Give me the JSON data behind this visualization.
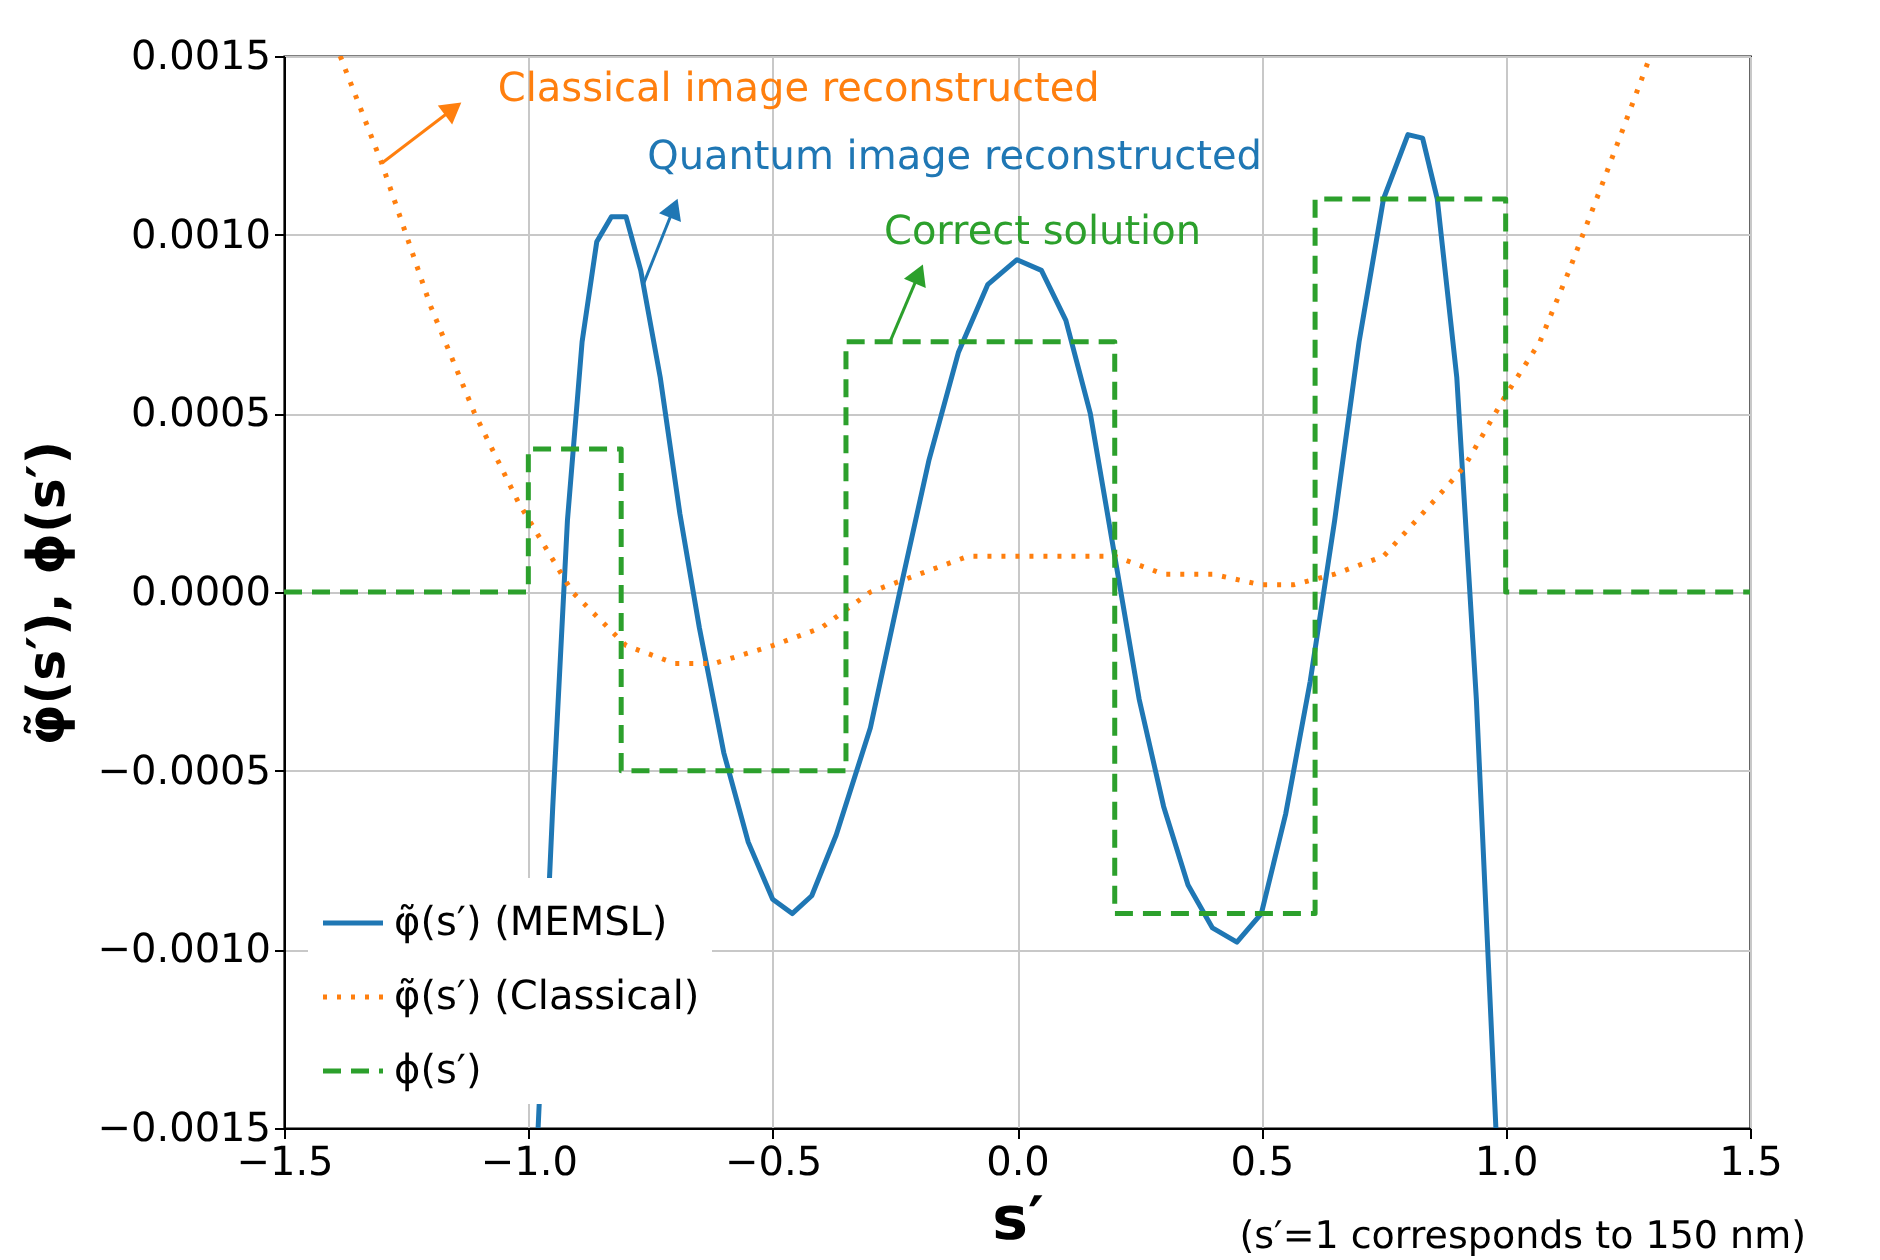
{
  "chart_data": {
    "type": "line",
    "xlabel": "s′",
    "ylabel": "φ̃(s′), ϕ(s′)",
    "xlim": [
      -1.5,
      1.5
    ],
    "ylim": [
      -0.0015,
      0.0015
    ],
    "xticks": [
      {
        "value": -1.5,
        "label": "−1.5"
      },
      {
        "value": -1.0,
        "label": "−1.0"
      },
      {
        "value": -0.5,
        "label": "−0.5"
      },
      {
        "value": 0.0,
        "label": "0.0"
      },
      {
        "value": 0.5,
        "label": "0.5"
      },
      {
        "value": 1.0,
        "label": "1.0"
      },
      {
        "value": 1.5,
        "label": "1.5"
      }
    ],
    "yticks": [
      {
        "value": -0.0015,
        "label": "−0.0015"
      },
      {
        "value": -0.001,
        "label": "−0.0010"
      },
      {
        "value": -0.0005,
        "label": "−0.0005"
      },
      {
        "value": 0,
        "label": "0.0000"
      },
      {
        "value": 0.0005,
        "label": "0.0005"
      },
      {
        "value": 0.001,
        "label": "0.0010"
      },
      {
        "value": 0.0015,
        "label": "0.0015"
      }
    ],
    "grid": true,
    "legend": "bottom left",
    "series": [
      {
        "name": "φ̃(s′) (MEMSL)",
        "line_style": "solid",
        "color": "#1f77b4",
        "x": [
          -0.98,
          -0.95,
          -0.92,
          -0.89,
          -0.86,
          -0.83,
          -0.8,
          -0.77,
          -0.73,
          -0.69,
          -0.65,
          -0.6,
          -0.55,
          -0.5,
          -0.46,
          -0.42,
          -0.37,
          -0.3,
          -0.24,
          -0.18,
          -0.12,
          -0.06,
          0.0,
          0.05,
          0.1,
          0.15,
          0.2,
          0.25,
          0.3,
          0.35,
          0.4,
          0.45,
          0.5,
          0.55,
          0.6,
          0.65,
          0.7,
          0.75,
          0.8,
          0.83,
          0.86,
          0.9,
          0.94,
          0.98
        ],
        "values": [
          -0.0015,
          -0.0006,
          0.0002,
          0.0007,
          0.00098,
          0.00105,
          0.00105,
          0.0009,
          0.0006,
          0.00022,
          -0.0001,
          -0.00045,
          -0.0007,
          -0.00086,
          -0.0009,
          -0.00085,
          -0.00068,
          -0.00038,
          0.0,
          0.00037,
          0.00067,
          0.00086,
          0.00093,
          0.0009,
          0.00076,
          0.0005,
          0.0001,
          -0.0003,
          -0.0006,
          -0.00082,
          -0.00094,
          -0.00098,
          -0.0009,
          -0.00062,
          -0.00025,
          0.0002,
          0.0007,
          0.0011,
          0.00128,
          0.00127,
          0.0011,
          0.0006,
          -0.0003,
          -0.0015
        ]
      },
      {
        "name": "φ̃(s′) (Classical)",
        "line_style": "dotted",
        "color": "#ff7f0e",
        "x": [
          -1.385,
          -1.3,
          -1.2,
          -1.11,
          -1.02,
          -0.91,
          -0.8,
          -0.7,
          -0.62,
          -0.5,
          -0.4,
          -0.3,
          -0.2,
          -0.1,
          0.0,
          0.08,
          0.2,
          0.3,
          0.4,
          0.5,
          0.565,
          0.65,
          0.75,
          0.85,
          0.915,
          1.0,
          1.07,
          1.13,
          1.2,
          1.296
        ],
        "values": [
          0.0015,
          0.0012,
          0.0008,
          0.0005,
          0.00025,
          0.0,
          -0.00015,
          -0.0002,
          -0.0002,
          -0.00015,
          -0.0001,
          0.0,
          5e-05,
          0.0001,
          0.0001,
          0.0001,
          0.0001,
          5e-05,
          5e-05,
          2e-05,
          2e-05,
          5e-05,
          0.0001,
          0.00025,
          0.00035,
          0.00055,
          0.0007,
          0.0009,
          0.00115,
          0.0015
        ]
      },
      {
        "name": "ϕ(s′)",
        "type": "step",
        "line_style": "dashed",
        "color": "#2ca02c",
        "x": [
          -1.5,
          -1.0,
          -0.81,
          -0.35,
          0.2,
          0.61,
          1.0,
          1.5
        ],
        "values": [
          0,
          0.0004,
          -0.0005,
          0.0007,
          -0.0009,
          0.0011,
          0,
          0
        ]
      }
    ],
    "annotations": [
      {
        "text": "Classical image reconstructed",
        "x": -1.3,
        "y": 0.0012
      },
      {
        "text": "Quantum image reconstructed",
        "x": -0.765,
        "y": 0.00086
      },
      {
        "text": "Correct solution",
        "x": -0.26,
        "y": 0.0007
      },
      "(s′=1 corresponds to 150 nm)"
    ]
  }
}
